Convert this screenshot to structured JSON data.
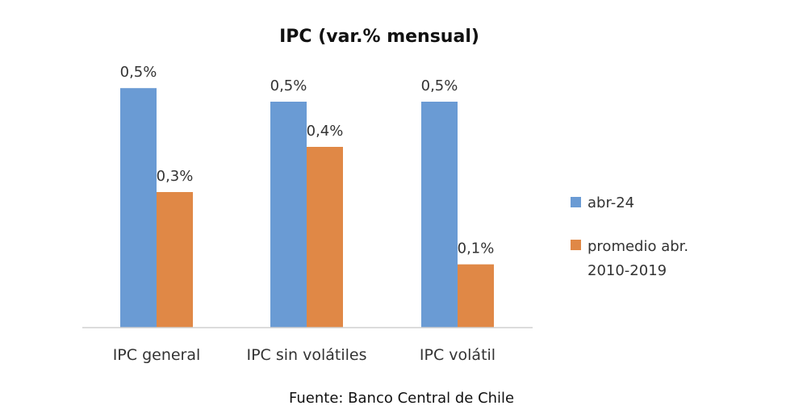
{
  "chart_data": {
    "type": "bar",
    "title": "IPC (var.% mensual)",
    "categories": [
      "IPC general",
      "IPC sin volátiles",
      "IPC volátil"
    ],
    "series": [
      {
        "name": "abr-24",
        "color": "#6a9bd4",
        "values": [
          0.53,
          0.5,
          0.5
        ],
        "labels": [
          "0,5%",
          "0,5%",
          "0,5%"
        ]
      },
      {
        "name_lines": [
          "promedio abr.",
          "2010-2019"
        ],
        "color": "#e08846",
        "values": [
          0.3,
          0.4,
          0.14
        ],
        "labels": [
          "0,3%",
          "0,4%",
          "0,1%"
        ]
      }
    ],
    "ylim": [
      0,
      0.6
    ],
    "grid": false,
    "legend": "right",
    "source": "Fuente: Banco Central de Chile"
  }
}
